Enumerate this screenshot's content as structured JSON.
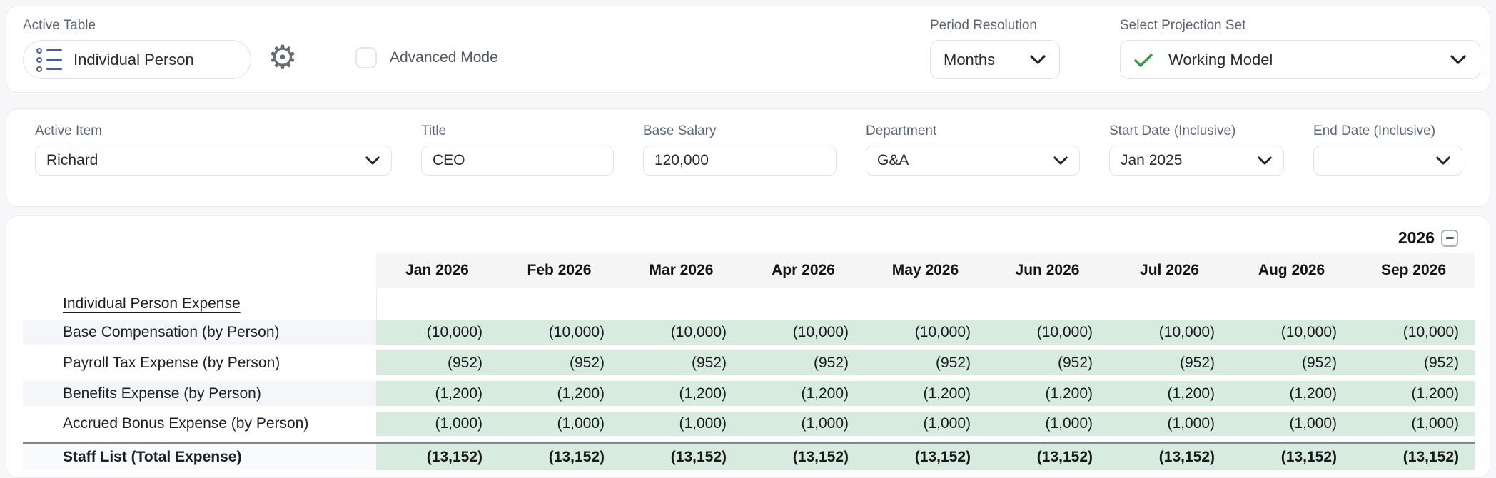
{
  "top_bar": {
    "active_table": {
      "label": "Active Table",
      "value": "Individual Person",
      "icon": "list-icon"
    },
    "settings": {
      "icon": "gear-icon",
      "glyph": "⚙"
    },
    "advanced_mode": {
      "label": "Advanced Mode",
      "checked": false
    },
    "period_resolution": {
      "label": "Period Resolution",
      "value": "Months"
    },
    "projection_set": {
      "label": "Select Projection Set",
      "value": "Working Model",
      "icon": "check-icon"
    }
  },
  "item_bar": {
    "active_item": {
      "label": "Active Item",
      "value": "Richard"
    },
    "title": {
      "label": "Title",
      "value": "CEO"
    },
    "base_salary": {
      "label": "Base Salary",
      "value": "120,000"
    },
    "department": {
      "label": "Department",
      "value": "G&A"
    },
    "start_date": {
      "label": "Start Date (Inclusive)",
      "value": "Jan 2025"
    },
    "end_date": {
      "label": "End Date (Inclusive)",
      "value": ""
    }
  },
  "table": {
    "year": "2026",
    "collapse_icon": "minus-square-icon",
    "columns": [
      "Jan 2026",
      "Feb 2026",
      "Mar 2026",
      "Apr 2026",
      "May 2026",
      "Jun 2026",
      "Jul 2026",
      "Aug 2026",
      "Sep 2026"
    ],
    "section_header": "Individual Person Expense",
    "rows": [
      {
        "label": "Base Compensation (by Person)",
        "values": [
          "(10,000)",
          "(10,000)",
          "(10,000)",
          "(10,000)",
          "(10,000)",
          "(10,000)",
          "(10,000)",
          "(10,000)",
          "(10,000)"
        ]
      },
      {
        "label": "Payroll Tax Expense (by Person)",
        "values": [
          "(952)",
          "(952)",
          "(952)",
          "(952)",
          "(952)",
          "(952)",
          "(952)",
          "(952)",
          "(952)"
        ]
      },
      {
        "label": "Benefits Expense (by Person)",
        "values": [
          "(1,200)",
          "(1,200)",
          "(1,200)",
          "(1,200)",
          "(1,200)",
          "(1,200)",
          "(1,200)",
          "(1,200)",
          "(1,200)"
        ]
      },
      {
        "label": "Accrued Bonus Expense (by Person)",
        "values": [
          "(1,000)",
          "(1,000)",
          "(1,000)",
          "(1,000)",
          "(1,000)",
          "(1,000)",
          "(1,000)",
          "(1,000)",
          "(1,000)"
        ]
      }
    ],
    "total_row": {
      "label": "Staff List (Total Expense)",
      "values": [
        "(13,152)",
        "(13,152)",
        "(13,152)",
        "(13,152)",
        "(13,152)",
        "(13,152)",
        "(13,152)",
        "(13,152)",
        "(13,152)"
      ]
    }
  },
  "colors": {
    "cell_green": "#d7ecdf",
    "check_green": "#2f9e44",
    "header_gray": "#f5f5f6",
    "page_bg": "#f7f7fa",
    "accent_blue": "#4c5e9c"
  }
}
